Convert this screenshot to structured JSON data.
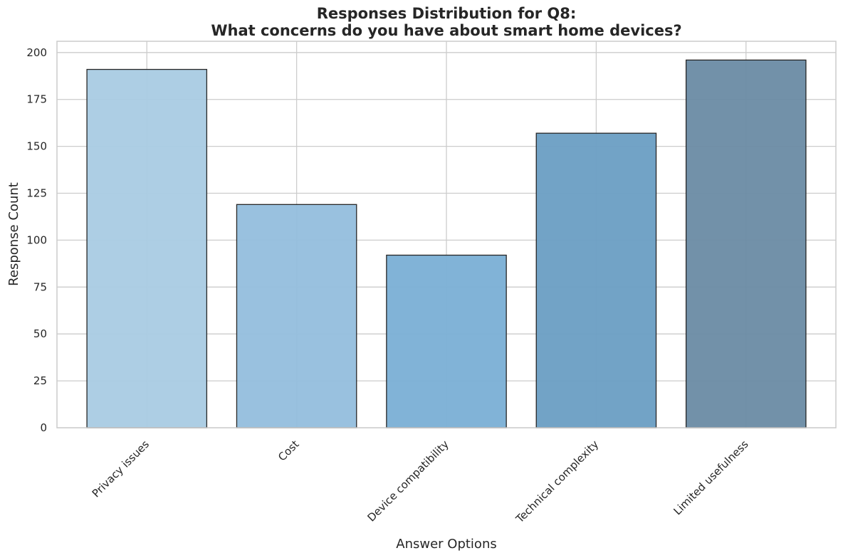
{
  "chart_data": {
    "type": "bar",
    "title_line1": "Responses Distribution for Q8:",
    "title_line2": "What concerns do you have about smart home devices?",
    "xlabel": "Answer Options",
    "ylabel": "Response Count",
    "categories": [
      "Privacy issues",
      "Cost",
      "Device compatibility",
      "Technical complexity",
      "Limited usefulness"
    ],
    "values": [
      191,
      119,
      92,
      157,
      196
    ],
    "colors": [
      "#a9cbe3",
      "#93bedd",
      "#7aafd5",
      "#6a9ec3",
      "#6a8ba4"
    ],
    "bar_opacity": 0.95,
    "ylim": [
      0,
      206
    ],
    "yticks": [
      0,
      25,
      50,
      75,
      100,
      125,
      150,
      175,
      200
    ],
    "grid": true,
    "legend": "none"
  }
}
